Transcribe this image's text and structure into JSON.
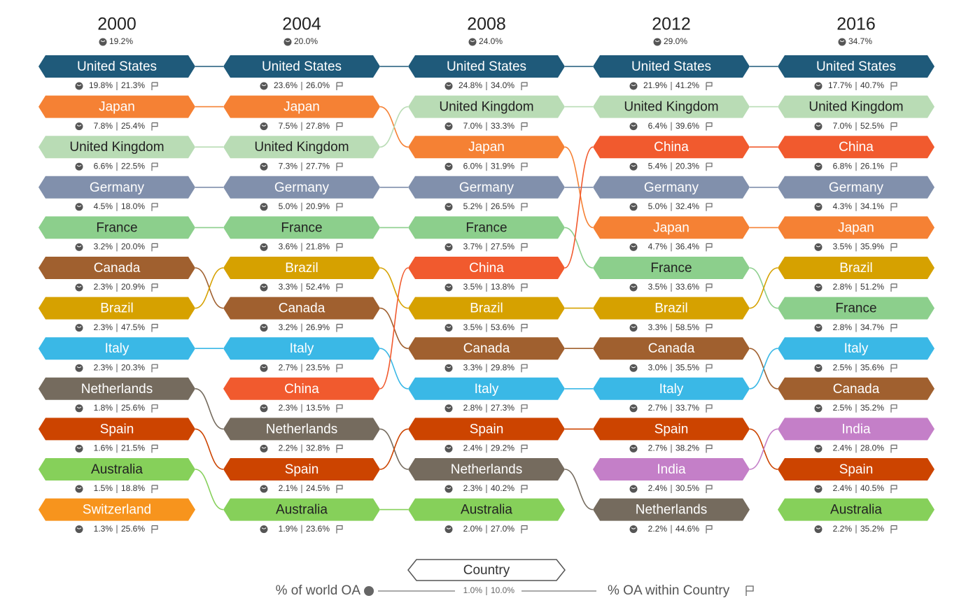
{
  "chart_data": {
    "type": "bump",
    "columns": [
      {
        "year": "2000",
        "value": 19.2,
        "value_label": "19.2%",
        "rows": [
          {
            "country": "United States",
            "color": "#1f5a7a",
            "values": [
              19.8,
              21.3
            ],
            "value_labels": [
              "19.8%",
              "21.3%"
            ]
          },
          {
            "country": "Japan",
            "color": "#f58134",
            "values": [
              7.8,
              25.4
            ],
            "value_labels": [
              "7.8%",
              "25.4%"
            ]
          },
          {
            "country": "United Kingdom",
            "color": "#b9dcb5",
            "values": [
              6.6,
              22.5
            ],
            "value_labels": [
              "6.6%",
              "22.5%"
            ]
          },
          {
            "country": "Germany",
            "color": "#8190ac",
            "values": [
              4.5,
              18.0
            ],
            "value_labels": [
              "4.5%",
              "18.0%"
            ]
          },
          {
            "country": "France",
            "color": "#8ccf8c",
            "values": [
              3.2,
              20.0
            ],
            "value_labels": [
              "3.2%",
              "20.0%"
            ]
          },
          {
            "country": "Canada",
            "color": "#a0602f",
            "values": [
              2.3,
              20.9
            ],
            "value_labels": [
              "2.3%",
              "20.9%"
            ]
          },
          {
            "country": "Brazil",
            "color": "#d6a100",
            "values": [
              2.3,
              47.5
            ],
            "value_labels": [
              "2.3%",
              "47.5%"
            ]
          },
          {
            "country": "Italy",
            "color": "#3ab8e6",
            "values": [
              2.3,
              20.3
            ],
            "value_labels": [
              "2.3%",
              "20.3%"
            ]
          },
          {
            "country": "Netherlands",
            "color": "#756b5e",
            "values": [
              1.8,
              25.6
            ],
            "value_labels": [
              "1.8%",
              "25.6%"
            ]
          },
          {
            "country": "Spain",
            "color": "#cc4400",
            "values": [
              1.6,
              21.5
            ],
            "value_labels": [
              "1.6%",
              "21.5%"
            ]
          },
          {
            "country": "Australia",
            "color": "#86d05a",
            "values": [
              1.5,
              18.8
            ],
            "value_labels": [
              "1.5%",
              "18.8%"
            ]
          },
          {
            "country": "Switzerland",
            "color": "#f7941d",
            "values": [
              1.3,
              25.6
            ],
            "value_labels": [
              "1.3%",
              "25.6%"
            ]
          }
        ]
      },
      {
        "year": "2004",
        "value": 20.0,
        "value_label": "20.0%",
        "rows": [
          {
            "country": "United States",
            "color": "#1f5a7a",
            "values": [
              23.6,
              26.0
            ],
            "value_labels": [
              "23.6%",
              "26.0%"
            ]
          },
          {
            "country": "Japan",
            "color": "#f58134",
            "values": [
              7.5,
              27.8
            ],
            "value_labels": [
              "7.5%",
              "27.8%"
            ]
          },
          {
            "country": "United Kingdom",
            "color": "#b9dcb5",
            "values": [
              7.3,
              27.7
            ],
            "value_labels": [
              "7.3%",
              "27.7%"
            ]
          },
          {
            "country": "Germany",
            "color": "#8190ac",
            "values": [
              5.0,
              20.9
            ],
            "value_labels": [
              "5.0%",
              "20.9%"
            ]
          },
          {
            "country": "France",
            "color": "#8ccf8c",
            "values": [
              3.6,
              21.8
            ],
            "value_labels": [
              "3.6%",
              "21.8%"
            ]
          },
          {
            "country": "Brazil",
            "color": "#d6a100",
            "values": [
              3.3,
              52.4
            ],
            "value_labels": [
              "3.3%",
              "52.4%"
            ]
          },
          {
            "country": "Canada",
            "color": "#a0602f",
            "values": [
              3.2,
              26.9
            ],
            "value_labels": [
              "3.2%",
              "26.9%"
            ]
          },
          {
            "country": "Italy",
            "color": "#3ab8e6",
            "values": [
              2.7,
              23.5
            ],
            "value_labels": [
              "2.7%",
              "23.5%"
            ]
          },
          {
            "country": "China",
            "color": "#f15a2e",
            "values": [
              2.3,
              13.5
            ],
            "value_labels": [
              "2.3%",
              "13.5%"
            ]
          },
          {
            "country": "Netherlands",
            "color": "#756b5e",
            "values": [
              2.2,
              32.8
            ],
            "value_labels": [
              "2.2%",
              "32.8%"
            ]
          },
          {
            "country": "Spain",
            "color": "#cc4400",
            "values": [
              2.1,
              24.5
            ],
            "value_labels": [
              "2.1%",
              "24.5%"
            ]
          },
          {
            "country": "Australia",
            "color": "#86d05a",
            "values": [
              1.9,
              23.6
            ],
            "value_labels": [
              "1.9%",
              "23.6%"
            ]
          }
        ]
      },
      {
        "year": "2008",
        "value": 24.0,
        "value_label": "24.0%",
        "rows": [
          {
            "country": "United States",
            "color": "#1f5a7a",
            "values": [
              24.8,
              34.0
            ],
            "value_labels": [
              "24.8%",
              "34.0%"
            ]
          },
          {
            "country": "United Kingdom",
            "color": "#b9dcb5",
            "values": [
              7.0,
              33.3
            ],
            "value_labels": [
              "7.0%",
              "33.3%"
            ]
          },
          {
            "country": "Japan",
            "color": "#f58134",
            "values": [
              6.0,
              31.9
            ],
            "value_labels": [
              "6.0%",
              "31.9%"
            ]
          },
          {
            "country": "Germany",
            "color": "#8190ac",
            "values": [
              5.2,
              26.5
            ],
            "value_labels": [
              "5.2%",
              "26.5%"
            ]
          },
          {
            "country": "France",
            "color": "#8ccf8c",
            "values": [
              3.7,
              27.5
            ],
            "value_labels": [
              "3.7%",
              "27.5%"
            ]
          },
          {
            "country": "China",
            "color": "#f15a2e",
            "values": [
              3.5,
              13.8
            ],
            "value_labels": [
              "3.5%",
              "13.8%"
            ]
          },
          {
            "country": "Brazil",
            "color": "#d6a100",
            "values": [
              3.5,
              53.6
            ],
            "value_labels": [
              "3.5%",
              "53.6%"
            ]
          },
          {
            "country": "Canada",
            "color": "#a0602f",
            "values": [
              3.3,
              29.8
            ],
            "value_labels": [
              "3.3%",
              "29.8%"
            ]
          },
          {
            "country": "Italy",
            "color": "#3ab8e6",
            "values": [
              2.8,
              27.3
            ],
            "value_labels": [
              "2.8%",
              "27.3%"
            ]
          },
          {
            "country": "Spain",
            "color": "#cc4400",
            "values": [
              2.4,
              29.2
            ],
            "value_labels": [
              "2.4%",
              "29.2%"
            ]
          },
          {
            "country": "Netherlands",
            "color": "#756b5e",
            "values": [
              2.3,
              40.2
            ],
            "value_labels": [
              "2.3%",
              "40.2%"
            ]
          },
          {
            "country": "Australia",
            "color": "#86d05a",
            "values": [
              2.0,
              27.0
            ],
            "value_labels": [
              "2.0%",
              "27.0%"
            ]
          }
        ]
      },
      {
        "year": "2012",
        "value": 29.0,
        "value_label": "29.0%",
        "rows": [
          {
            "country": "United States",
            "color": "#1f5a7a",
            "values": [
              21.9,
              41.2
            ],
            "value_labels": [
              "21.9%",
              "41.2%"
            ]
          },
          {
            "country": "United Kingdom",
            "color": "#b9dcb5",
            "values": [
              6.4,
              39.6
            ],
            "value_labels": [
              "6.4%",
              "39.6%"
            ]
          },
          {
            "country": "China",
            "color": "#f15a2e",
            "values": [
              5.4,
              20.3
            ],
            "value_labels": [
              "5.4%",
              "20.3%"
            ]
          },
          {
            "country": "Germany",
            "color": "#8190ac",
            "values": [
              5.0,
              32.4
            ],
            "value_labels": [
              "5.0%",
              "32.4%"
            ]
          },
          {
            "country": "Japan",
            "color": "#f58134",
            "values": [
              4.7,
              36.4
            ],
            "value_labels": [
              "4.7%",
              "36.4%"
            ]
          },
          {
            "country": "France",
            "color": "#8ccf8c",
            "values": [
              3.5,
              33.6
            ],
            "value_labels": [
              "3.5%",
              "33.6%"
            ]
          },
          {
            "country": "Brazil",
            "color": "#d6a100",
            "values": [
              3.3,
              58.5
            ],
            "value_labels": [
              "3.3%",
              "58.5%"
            ]
          },
          {
            "country": "Canada",
            "color": "#a0602f",
            "values": [
              3.0,
              35.5
            ],
            "value_labels": [
              "3.0%",
              "35.5%"
            ]
          },
          {
            "country": "Italy",
            "color": "#3ab8e6",
            "values": [
              2.7,
              33.7
            ],
            "value_labels": [
              "2.7%",
              "33.7%"
            ]
          },
          {
            "country": "Spain",
            "color": "#cc4400",
            "values": [
              2.7,
              38.2
            ],
            "value_labels": [
              "2.7%",
              "38.2%"
            ]
          },
          {
            "country": "India",
            "color": "#c47fc8",
            "values": [
              2.4,
              30.5
            ],
            "value_labels": [
              "2.4%",
              "30.5%"
            ]
          },
          {
            "country": "Netherlands",
            "color": "#756b5e",
            "values": [
              2.2,
              44.6
            ],
            "value_labels": [
              "2.2%",
              "44.6%"
            ]
          }
        ]
      },
      {
        "year": "2016",
        "value": 34.7,
        "value_label": "34.7%",
        "rows": [
          {
            "country": "United States",
            "color": "#1f5a7a",
            "values": [
              17.7,
              40.7
            ],
            "value_labels": [
              "17.7%",
              "40.7%"
            ]
          },
          {
            "country": "United Kingdom",
            "color": "#b9dcb5",
            "values": [
              7.0,
              52.5
            ],
            "value_labels": [
              "7.0%",
              "52.5%"
            ]
          },
          {
            "country": "China",
            "color": "#f15a2e",
            "values": [
              6.8,
              26.1
            ],
            "value_labels": [
              "6.8%",
              "26.1%"
            ]
          },
          {
            "country": "Germany",
            "color": "#8190ac",
            "values": [
              4.3,
              34.1
            ],
            "value_labels": [
              "4.3%",
              "34.1%"
            ]
          },
          {
            "country": "Japan",
            "color": "#f58134",
            "values": [
              3.5,
              35.9
            ],
            "value_labels": [
              "3.5%",
              "35.9%"
            ]
          },
          {
            "country": "Brazil",
            "color": "#d6a100",
            "values": [
              2.8,
              51.2
            ],
            "value_labels": [
              "2.8%",
              "51.2%"
            ]
          },
          {
            "country": "France",
            "color": "#8ccf8c",
            "values": [
              2.8,
              34.7
            ],
            "value_labels": [
              "2.8%",
              "34.7%"
            ]
          },
          {
            "country": "Italy",
            "color": "#3ab8e6",
            "values": [
              2.5,
              35.6
            ],
            "value_labels": [
              "2.5%",
              "35.6%"
            ]
          },
          {
            "country": "Canada",
            "color": "#a0602f",
            "values": [
              2.5,
              35.2
            ],
            "value_labels": [
              "2.5%",
              "35.2%"
            ]
          },
          {
            "country": "India",
            "color": "#c47fc8",
            "values": [
              2.4,
              28.0
            ],
            "value_labels": [
              "2.4%",
              "28.0%"
            ]
          },
          {
            "country": "Spain",
            "color": "#cc4400",
            "values": [
              2.4,
              40.5
            ],
            "value_labels": [
              "2.4%",
              "40.5%"
            ]
          },
          {
            "country": "Australia",
            "color": "#86d05a",
            "values": [
              2.2,
              35.2
            ],
            "value_labels": [
              "2.2%",
              "35.2%"
            ]
          }
        ]
      }
    ],
    "legend": {
      "label": "Country",
      "left_label": "% of world OA",
      "right_label": "% OA within Country",
      "values": [
        1.0,
        10.0
      ],
      "value_labels": [
        "1.0%",
        "10.0%"
      ]
    }
  }
}
